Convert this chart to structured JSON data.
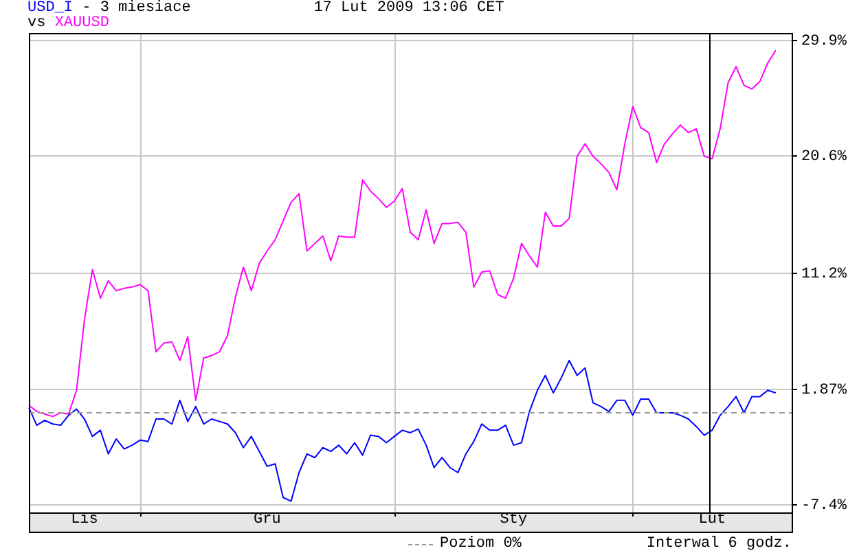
{
  "chart_data": {
    "type": "line",
    "title": "17 Lut 2009 13:06 CET",
    "subtitle": "- 3 miesiace",
    "legend_title": "vs",
    "legend": "bottom",
    "marker": "none",
    "grid": true,
    "categories": [
      null,
      null,
      null,
      null,
      null,
      null,
      null,
      "Lis",
      null,
      null,
      null,
      null,
      null,
      null,
      null,
      null,
      null,
      null,
      null,
      null,
      null,
      null,
      null,
      null,
      null,
      null,
      null,
      null,
      null,
      null,
      "Gru",
      null,
      null,
      null,
      null,
      null,
      null,
      null,
      null,
      null,
      null,
      null,
      null,
      null,
      null,
      null,
      null,
      null,
      null,
      null,
      null,
      null,
      null,
      null,
      null,
      null,
      null,
      null,
      null,
      null,
      null,
      "Sty",
      null,
      null,
      null,
      null,
      null,
      null,
      null,
      null,
      null,
      null,
      null,
      null,
      null,
      null,
      null,
      null,
      null,
      null,
      null,
      null,
      null,
      null,
      null,
      null,
      "Lut",
      null,
      null,
      null,
      null,
      null,
      null,
      null,
      null,
      null,
      null
    ],
    "ylim": [
      -8,
      30.5
    ],
    "yticks": [
      {
        "value": -7.4,
        "label": "-7.4%"
      },
      {
        "value": 1.87,
        "label": "1.87%"
      },
      {
        "value": 11.2,
        "label": "11.2%"
      },
      {
        "value": 20.6,
        "label": "20.6%"
      },
      {
        "value": 29.9,
        "label": "29.9%"
      }
    ],
    "ref_lines": [
      {
        "axis": "y",
        "value": 0,
        "label": "Poziom 0%",
        "color": "#999999",
        "line_style": "dashed"
      }
    ],
    "annotations": [
      "Interwal 6 godz."
    ],
    "series": [
      {
        "name": "USD_I",
        "color": "#0000ff",
        "values": [
          0.4,
          -1.0,
          -0.6,
          -0.9,
          -1.0,
          -0.2,
          0.3,
          -0.5,
          -1.9,
          -1.4,
          -3.3,
          -2.1,
          -2.9,
          -2.6,
          -2.2,
          -2.3,
          -0.5,
          -0.5,
          -0.9,
          1.0,
          -0.7,
          0.5,
          -0.9,
          -0.5,
          -0.7,
          -0.9,
          -1.6,
          -2.8,
          -1.9,
          -3.1,
          -4.3,
          -4.1,
          -6.8,
          -7.1,
          -4.8,
          -3.3,
          -3.6,
          -2.8,
          -3.1,
          -2.6,
          -3.3,
          -2.4,
          -3.4,
          -1.8,
          -1.9,
          -2.4,
          -1.9,
          -1.4,
          -1.6,
          -1.3,
          -2.6,
          -4.4,
          -3.6,
          -4.4,
          -4.8,
          -3.3,
          -2.3,
          -0.9,
          -1.4,
          -1.4,
          -1.0,
          -2.6,
          -2.4,
          0.1,
          1.8,
          3.0,
          1.6,
          2.8,
          4.2,
          3.0,
          3.6,
          0.8,
          0.5,
          0.1,
          1.0,
          1.0,
          -0.2,
          1.1,
          1.1,
          0.0,
          0.0,
          0.0,
          -0.2,
          -0.5,
          -1.1,
          -1.8,
          -1.4,
          -0.2,
          0.5,
          1.3,
          0.0,
          1.3,
          1.3,
          1.8,
          1.6,
          null,
          null
        ]
      },
      {
        "name": "XAUUSD",
        "color": "#ff00ff",
        "values": [
          0.6,
          0.1,
          -0.1,
          -0.3,
          0.0,
          -0.1,
          1.8,
          7.5,
          11.5,
          9.2,
          10.6,
          9.8,
          10.0,
          10.1,
          10.3,
          9.8,
          4.9,
          5.6,
          5.7,
          4.2,
          6.1,
          1.0,
          4.4,
          4.6,
          4.9,
          6.2,
          9.3,
          11.7,
          9.8,
          12.0,
          13.0,
          13.9,
          15.4,
          16.9,
          17.6,
          13.0,
          13.6,
          14.2,
          12.2,
          14.2,
          14.1,
          14.1,
          18.7,
          17.8,
          17.2,
          16.5,
          17.0,
          18.0,
          14.5,
          13.9,
          16.3,
          13.6,
          15.2,
          15.2,
          15.3,
          14.5,
          10.1,
          11.3,
          11.4,
          9.5,
          9.2,
          10.8,
          13.6,
          12.6,
          11.7,
          16.1,
          15.0,
          15.0,
          15.6,
          20.6,
          21.6,
          20.6,
          20.0,
          19.3,
          17.9,
          21.6,
          24.6,
          22.9,
          22.5,
          20.1,
          21.6,
          22.4,
          23.1,
          22.5,
          22.8,
          20.6,
          20.4,
          22.8,
          26.5,
          27.8,
          26.3,
          26.0,
          26.6,
          28.1,
          29.1,
          null,
          null
        ]
      }
    ]
  }
}
